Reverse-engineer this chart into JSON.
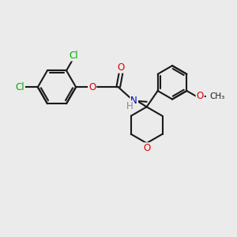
{
  "bg_color": "#ebebeb",
  "bond_color": "#1a1a1a",
  "bond_width": 1.5,
  "atom_colors": {
    "O": "#dd0000",
    "N": "#0000cc",
    "Cl": "#00aa00",
    "C": "#1a1a1a",
    "H": "#888888"
  },
  "font_size": 8.5,
  "fig_size": [
    3.0,
    3.0
  ],
  "dpi": 100
}
